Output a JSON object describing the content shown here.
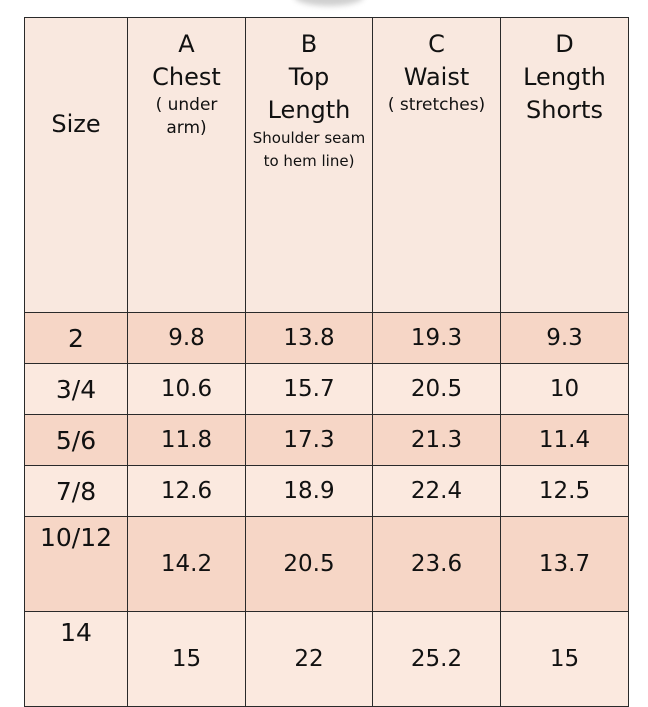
{
  "table": {
    "header": [
      {
        "letter": null,
        "title": "Size",
        "note": null
      },
      {
        "letter": "A",
        "title": "Chest",
        "note": "( under arm)"
      },
      {
        "letter": "B",
        "title": "Top Length",
        "note": "Shoulder seam to hem line)"
      },
      {
        "letter": "C",
        "title": "Waist",
        "note": "( stretches)"
      },
      {
        "letter": "D",
        "title": "Length Shorts",
        "note": null
      }
    ],
    "rows": [
      [
        "2",
        9.8,
        13.8,
        19.3,
        9.3
      ],
      [
        "3/4",
        10.6,
        15.7,
        20.5,
        10
      ],
      [
        "5/6",
        11.8,
        17.3,
        21.3,
        11.4
      ],
      [
        "7/8",
        12.6,
        18.9,
        22.4,
        12.5
      ],
      [
        "10/12",
        14.2,
        20.5,
        23.6,
        13.7
      ],
      [
        "14",
        15,
        22,
        25.2,
        15
      ]
    ]
  }
}
